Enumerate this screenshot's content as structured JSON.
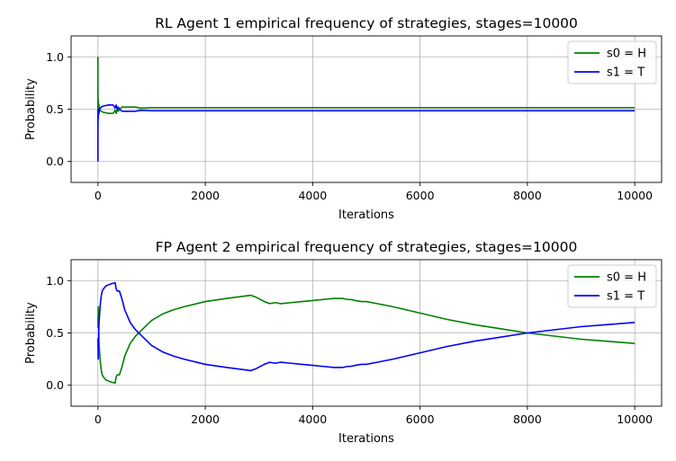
{
  "chart_data": [
    {
      "type": "line",
      "title": "RL Agent 1 empirical frequency of strategies, stages=10000",
      "xlabel": "Iterations",
      "ylabel": "Probability",
      "xlim": [
        -500,
        10500
      ],
      "ylim": [
        -0.2,
        1.2
      ],
      "xticks": [
        0,
        2000,
        4000,
        6000,
        8000,
        10000
      ],
      "yticks": [
        0.0,
        0.5,
        1.0
      ],
      "xtick_labels": [
        "0",
        "2000",
        "4000",
        "6000",
        "8000",
        "10000"
      ],
      "ytick_labels": [
        "0.0",
        "0.5",
        "1.0"
      ],
      "grid": true,
      "legend_position": "top-right",
      "series": [
        {
          "name": "s0 = H",
          "color": "#008000",
          "x": [
            0,
            0,
            1,
            2,
            4,
            8,
            15,
            30,
            60,
            100,
            200,
            280,
            300,
            320,
            340,
            360,
            380,
            400,
            450,
            500,
            600,
            700,
            800,
            1000,
            1500,
            2000,
            3000,
            4000,
            5000,
            6000,
            7000,
            8000,
            9000,
            10000
          ],
          "y": [
            1.0,
            0.5,
            0.67,
            0.55,
            0.6,
            0.5,
            0.55,
            0.5,
            0.48,
            0.47,
            0.46,
            0.46,
            0.47,
            0.49,
            0.46,
            0.5,
            0.48,
            0.5,
            0.52,
            0.52,
            0.52,
            0.52,
            0.51,
            0.515,
            0.515,
            0.515,
            0.515,
            0.515,
            0.515,
            0.515,
            0.515,
            0.515,
            0.515,
            0.515
          ]
        },
        {
          "name": "s1 = T",
          "color": "#0000ff",
          "x": [
            0,
            0,
            1,
            2,
            4,
            8,
            15,
            30,
            60,
            100,
            200,
            280,
            300,
            320,
            340,
            360,
            380,
            400,
            450,
            500,
            600,
            700,
            800,
            1000,
            1500,
            2000,
            3000,
            4000,
            5000,
            6000,
            7000,
            8000,
            9000,
            10000
          ],
          "y": [
            0.0,
            0.5,
            0.33,
            0.45,
            0.4,
            0.5,
            0.45,
            0.5,
            0.52,
            0.53,
            0.54,
            0.54,
            0.53,
            0.51,
            0.54,
            0.5,
            0.52,
            0.5,
            0.48,
            0.48,
            0.48,
            0.48,
            0.49,
            0.485,
            0.485,
            0.485,
            0.485,
            0.485,
            0.485,
            0.485,
            0.485,
            0.485,
            0.485,
            0.485
          ]
        }
      ]
    },
    {
      "type": "line",
      "title": "FP Agent 2 empirical frequency of strategies, stages=10000",
      "xlabel": "Iterations",
      "ylabel": "Probability",
      "xlim": [
        -500,
        10500
      ],
      "ylim": [
        -0.2,
        1.2
      ],
      "xticks": [
        0,
        2000,
        4000,
        6000,
        8000,
        10000
      ],
      "yticks": [
        0.0,
        0.5,
        1.0
      ],
      "xtick_labels": [
        "0",
        "2000",
        "4000",
        "6000",
        "8000",
        "10000"
      ],
      "ytick_labels": [
        "0.0",
        "0.5",
        "1.0"
      ],
      "grid": true,
      "legend_position": "top-right",
      "series": [
        {
          "name": "s0 = H",
          "color": "#008000",
          "x": [
            0,
            5,
            10,
            20,
            40,
            60,
            80,
            100,
            150,
            200,
            250,
            320,
            340,
            360,
            400,
            450,
            500,
            600,
            700,
            800,
            900,
            1000,
            1200,
            1400,
            1600,
            2000,
            2400,
            2850,
            2950,
            3100,
            3200,
            3300,
            3400,
            3600,
            3800,
            4000,
            4200,
            4400,
            4550,
            4650,
            4700,
            4800,
            4900,
            5000,
            5200,
            5500,
            6000,
            6500,
            7000,
            7500,
            8000,
            8500,
            9000,
            9500,
            10000
          ],
          "y": [
            0.55,
            0.75,
            0.6,
            0.4,
            0.25,
            0.15,
            0.1,
            0.08,
            0.05,
            0.04,
            0.03,
            0.02,
            0.08,
            0.1,
            0.1,
            0.18,
            0.28,
            0.4,
            0.47,
            0.52,
            0.57,
            0.62,
            0.68,
            0.72,
            0.75,
            0.8,
            0.83,
            0.86,
            0.84,
            0.8,
            0.78,
            0.79,
            0.78,
            0.79,
            0.8,
            0.81,
            0.82,
            0.83,
            0.83,
            0.82,
            0.82,
            0.81,
            0.8,
            0.8,
            0.78,
            0.75,
            0.69,
            0.63,
            0.58,
            0.54,
            0.5,
            0.47,
            0.44,
            0.42,
            0.4
          ]
        },
        {
          "name": "s1 = T",
          "color": "#0000ff",
          "x": [
            0,
            5,
            10,
            20,
            40,
            60,
            80,
            100,
            150,
            200,
            250,
            320,
            340,
            360,
            400,
            450,
            500,
            600,
            700,
            800,
            900,
            1000,
            1200,
            1400,
            1600,
            2000,
            2400,
            2850,
            2950,
            3100,
            3200,
            3300,
            3400,
            3600,
            3800,
            4000,
            4200,
            4400,
            4550,
            4650,
            4700,
            4800,
            4900,
            5000,
            5200,
            5500,
            6000,
            6500,
            7000,
            7500,
            8000,
            8500,
            9000,
            9500,
            10000
          ],
          "y": [
            0.45,
            0.25,
            0.4,
            0.6,
            0.75,
            0.85,
            0.9,
            0.92,
            0.95,
            0.96,
            0.97,
            0.98,
            0.92,
            0.9,
            0.9,
            0.82,
            0.72,
            0.6,
            0.53,
            0.48,
            0.43,
            0.38,
            0.32,
            0.28,
            0.25,
            0.2,
            0.17,
            0.14,
            0.16,
            0.2,
            0.22,
            0.21,
            0.22,
            0.21,
            0.2,
            0.19,
            0.18,
            0.17,
            0.17,
            0.18,
            0.18,
            0.19,
            0.2,
            0.2,
            0.22,
            0.25,
            0.31,
            0.37,
            0.42,
            0.46,
            0.5,
            0.53,
            0.56,
            0.58,
            0.6
          ]
        }
      ]
    }
  ]
}
